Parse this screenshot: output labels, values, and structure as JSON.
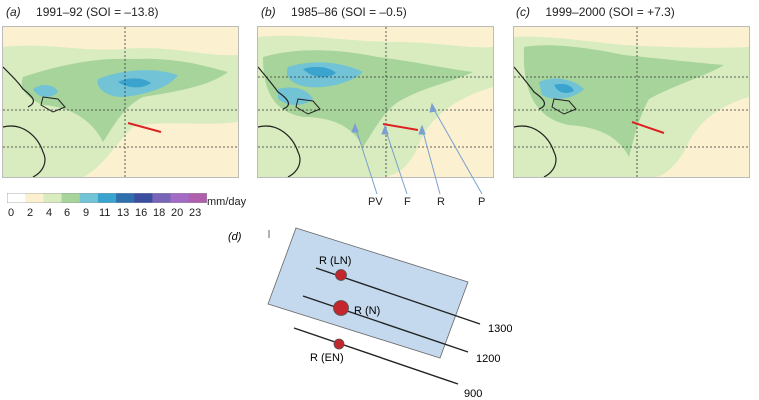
{
  "panels": [
    {
      "letter": "(a)",
      "period": "1991–92 (SOI = –13.8)"
    },
    {
      "letter": "(b)",
      "period": "1985–86 (SOI = –0.5)"
    },
    {
      "letter": "(c)",
      "period": "1999–2000 (SOI = +7.3)"
    }
  ],
  "colorbar": {
    "ticks": [
      "0",
      "2",
      "4",
      "6",
      "9",
      "11",
      "13",
      "16",
      "18",
      "20",
      "23"
    ],
    "colors": [
      "#ffffff",
      "#fbf1d0",
      "#d9ecc0",
      "#a6d49a",
      "#73c3d6",
      "#3aa4cf",
      "#2f6fae",
      "#3b4ea0",
      "#7a64b8",
      "#a36bc4",
      "#b05fae"
    ],
    "unit": "mm/day"
  },
  "callouts": [
    "PV",
    "F",
    "R",
    "P"
  ],
  "diagram": {
    "letter": "(d)",
    "rows": [
      {
        "label": "R (LN)",
        "isoline": "1300"
      },
      {
        "label": "R (N)",
        "isoline": "1200"
      },
      {
        "label": "R (EN)",
        "isoline": "900"
      }
    ]
  }
}
